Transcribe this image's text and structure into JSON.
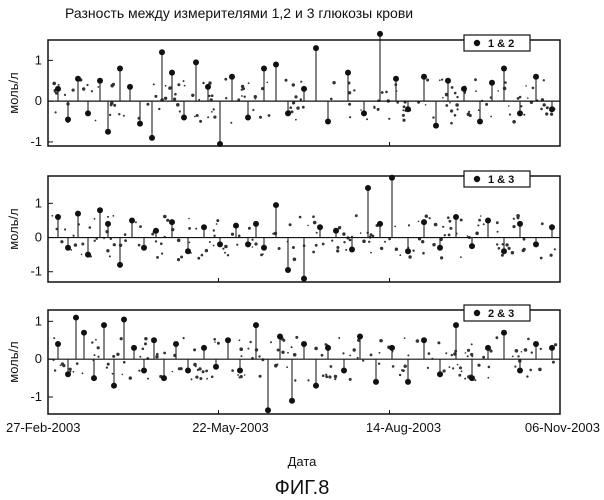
{
  "figure": {
    "title": "Разность между измерителями 1,2 и 3 глюкозы крови",
    "ylabel": "моль/л",
    "xlabel": "Дата",
    "caption": "ФИГ.8",
    "x_ticks": [
      "27-Feb-2003",
      "22-May-2003",
      "14-Aug-2003",
      "06-Nov-2003"
    ]
  },
  "chart_data": [
    {
      "type": "scatter",
      "legend": "1 & 2",
      "legend_placement": "top-right",
      "ylim": [
        -1.1,
        1.5
      ],
      "y_ticks": [
        "1",
        "0",
        "-1"
      ],
      "x_ticks": [
        "27-Feb-2003",
        "22-May-2003",
        "14-Aug-2003",
        "06-Nov-2003"
      ],
      "x": [
        5,
        10,
        15,
        20,
        26,
        30,
        36,
        41,
        46,
        52,
        57,
        62,
        68,
        74,
        80,
        86,
        92,
        100,
        108,
        114,
        120,
        128,
        134,
        140,
        150,
        158,
        166,
        174,
        180,
        188,
        194,
        200,
        208,
        216,
        222,
        228,
        236,
        244,
        252
      ],
      "y": [
        0.3,
        -0.45,
        0.55,
        -0.3,
        0.5,
        -0.75,
        0.8,
        0.35,
        -0.55,
        -0.9,
        1.2,
        0.7,
        -0.4,
        0.95,
        0.35,
        -1.05,
        0.6,
        -0.4,
        0.8,
        0.9,
        -0.3,
        0.3,
        1.3,
        -0.5,
        0.7,
        -0.3,
        1.65,
        0.55,
        -0.2,
        0.6,
        -0.6,
        0.5,
        0.3,
        -0.5,
        0.45,
        0.8,
        -0.3,
        0.6,
        -0.2
      ]
    },
    {
      "type": "scatter",
      "legend": "1 & 3",
      "legend_placement": "top-right",
      "ylim": [
        -1.3,
        1.8
      ],
      "y_ticks": [
        "1",
        "0",
        "-1"
      ],
      "x_ticks": [
        "27-Feb-2003",
        "22-May-2003",
        "14-Aug-2003",
        "06-Nov-2003"
      ],
      "x": [
        5,
        10,
        15,
        20,
        26,
        30,
        36,
        42,
        48,
        54,
        62,
        70,
        78,
        86,
        94,
        100,
        104,
        108,
        114,
        120,
        128,
        136,
        144,
        152,
        160,
        166,
        172,
        180,
        188,
        196,
        204,
        212,
        220,
        228,
        236,
        244,
        252
      ],
      "y": [
        0.6,
        -0.3,
        0.7,
        -0.5,
        0.8,
        0.4,
        -0.8,
        0.5,
        -0.3,
        0.2,
        0.45,
        -0.4,
        0.3,
        -0.2,
        0.35,
        -0.2,
        0.4,
        -0.3,
        0.95,
        -0.95,
        -1.2,
        0.3,
        0.2,
        -0.35,
        1.45,
        0.4,
        1.75,
        -0.4,
        0.45,
        -0.3,
        0.6,
        -0.25,
        0.5,
        -0.4,
        0.4,
        -0.2,
        0.3
      ]
    },
    {
      "type": "scatter",
      "legend": "2 & 3",
      "legend_placement": "top-right",
      "ylim": [
        -1.45,
        1.3
      ],
      "y_ticks": [
        "1",
        "0",
        "-1"
      ],
      "x_ticks": [
        "27-Feb-2003",
        "22-May-2003",
        "14-Aug-2003",
        "06-Nov-2003"
      ],
      "x": [
        5,
        10,
        14,
        18,
        23,
        28,
        33,
        38,
        43,
        48,
        53,
        58,
        64,
        70,
        78,
        84,
        90,
        96,
        104,
        110,
        116,
        122,
        128,
        134,
        140,
        148,
        156,
        164,
        172,
        180,
        188,
        196,
        204,
        212,
        220,
        228,
        236,
        244,
        252
      ],
      "y": [
        0.4,
        -0.4,
        1.1,
        0.7,
        -0.5,
        0.9,
        -0.7,
        1.05,
        0.3,
        -0.3,
        0.5,
        -0.5,
        0.4,
        -0.3,
        0.3,
        -0.2,
        0.5,
        -0.3,
        0.9,
        -1.35,
        0.6,
        -1.1,
        0.4,
        -0.7,
        0.3,
        -0.3,
        0.6,
        -0.6,
        0.3,
        -0.6,
        0.5,
        -0.4,
        0.9,
        -0.5,
        0.3,
        0.7,
        -0.3,
        0.4,
        0.3
      ]
    }
  ]
}
